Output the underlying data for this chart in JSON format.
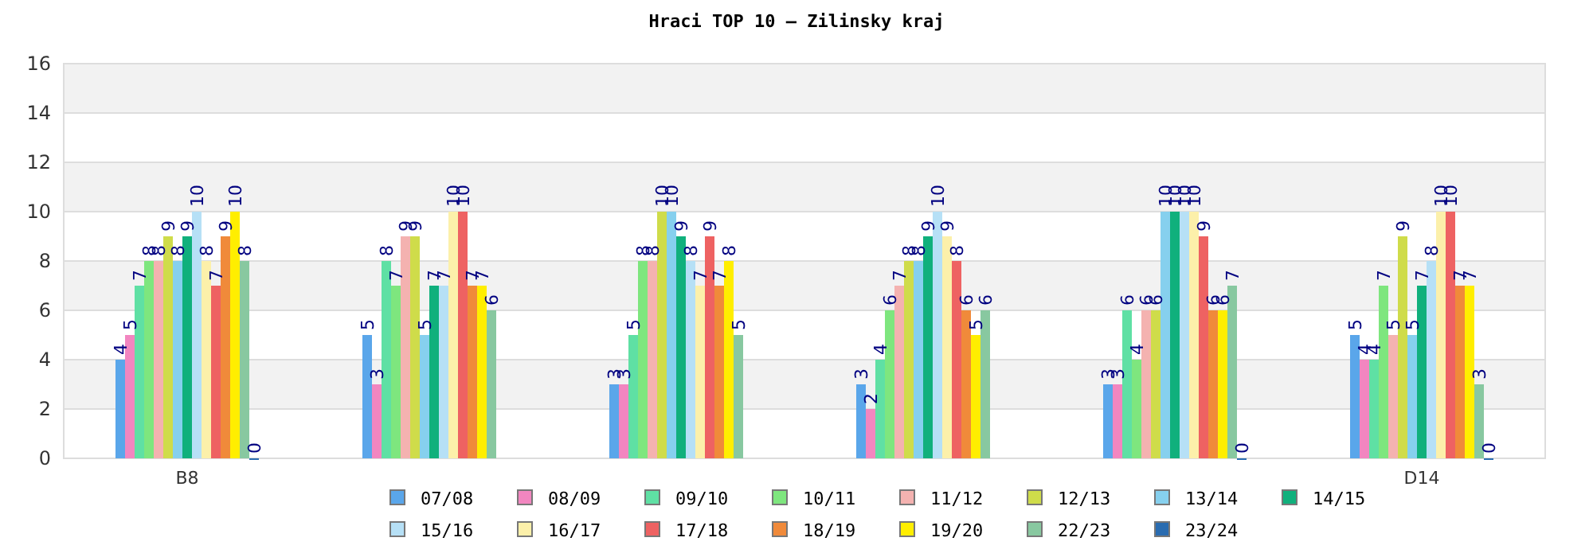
{
  "chart_data": {
    "type": "bar",
    "title": "Hraci TOP 10 – Zilinsky kraj",
    "categories": [
      "B8",
      null,
      null,
      null,
      null,
      "D14"
    ],
    "series": [
      {
        "name": "07/08",
        "color": "#5aa6ea",
        "values": [
          4,
          5,
          3,
          3,
          3,
          5
        ]
      },
      {
        "name": "08/09",
        "color": "#f286c0",
        "values": [
          5,
          3,
          3,
          2,
          3,
          4
        ]
      },
      {
        "name": "09/10",
        "color": "#5fe0a4",
        "values": [
          7,
          8,
          5,
          4,
          6,
          4
        ]
      },
      {
        "name": "10/11",
        "color": "#7ee67e",
        "values": [
          8,
          7,
          8,
          6,
          4,
          7
        ]
      },
      {
        "name": "11/12",
        "color": "#f4b2b0",
        "values": [
          8,
          9,
          8,
          7,
          6,
          5
        ]
      },
      {
        "name": "12/13",
        "color": "#cfdc4a",
        "values": [
          9,
          9,
          10,
          8,
          6,
          9
        ]
      },
      {
        "name": "13/14",
        "color": "#86d0ee",
        "values": [
          8,
          5,
          10,
          8,
          10,
          5
        ]
      },
      {
        "name": "14/15",
        "color": "#10b07c",
        "values": [
          9,
          7,
          9,
          9,
          10,
          7
        ]
      },
      {
        "name": "15/16",
        "color": "#b6e0f6",
        "values": [
          10,
          7,
          8,
          10,
          10,
          8
        ]
      },
      {
        "name": "16/17",
        "color": "#fcf0aa",
        "values": [
          8,
          10,
          7,
          9,
          10,
          10
        ]
      },
      {
        "name": "17/18",
        "color": "#ee6262",
        "values": [
          7,
          10,
          9,
          8,
          9,
          10
        ]
      },
      {
        "name": "18/19",
        "color": "#f08a3a",
        "values": [
          9,
          7,
          7,
          6,
          6,
          7
        ]
      },
      {
        "name": "19/20",
        "color": "#ffee00",
        "values": [
          10,
          7,
          8,
          5,
          6,
          7
        ]
      },
      {
        "name": "22/23",
        "color": "#88c8a0",
        "values": [
          8,
          6,
          5,
          6,
          7,
          3
        ]
      },
      {
        "name": "23/24",
        "color": "#2a6cb0",
        "values": [
          0,
          null,
          null,
          null,
          0,
          0
        ]
      }
    ],
    "ylim": [
      0,
      16
    ],
    "yticks": [
      0,
      2,
      4,
      6,
      8,
      10,
      12,
      14,
      16
    ],
    "grid": true,
    "legend": "bottom",
    "data_labels": true
  }
}
